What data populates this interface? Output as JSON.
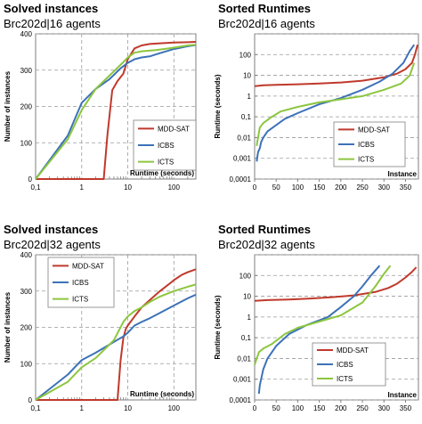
{
  "chart_data": [
    {
      "type": "line",
      "title": "Solved instances",
      "subtitle": "Brc202d|16 agents",
      "xlabel": "Runtime  (seconds)",
      "ylabel": "Number of instances",
      "xscale": "log",
      "xlim": [
        0.1,
        300
      ],
      "ylim": [
        0,
        400
      ],
      "xticks": [
        "0,1",
        "1",
        "10",
        "100"
      ],
      "yticks": [
        "0",
        "100",
        "200",
        "300",
        "400"
      ],
      "grid": true,
      "legend_position": "bottom-right",
      "series": [
        {
          "name": "MDD-SAT",
          "color": "#c0392b",
          "x": [
            0.1,
            3.0,
            3.6,
            4.6,
            6.0,
            8.0,
            10,
            14,
            20,
            30,
            50,
            100,
            200,
            300
          ],
          "y": [
            0,
            0,
            120,
            245,
            270,
            290,
            330,
            360,
            368,
            372,
            374,
            376,
            377,
            378
          ]
        },
        {
          "name": "ICBS",
          "color": "#3c72b8",
          "x": [
            0.1,
            0.5,
            1.0,
            2.0,
            4.0,
            7.0,
            10,
            14,
            20,
            30,
            40,
            60,
            100,
            200,
            300
          ],
          "y": [
            0,
            120,
            210,
            248,
            275,
            305,
            320,
            330,
            335,
            338,
            343,
            350,
            358,
            366,
            369
          ]
        },
        {
          "name": "ICTS",
          "color": "#8cc63f",
          "x": [
            0.1,
            0.5,
            1.0,
            2.0,
            4.0,
            8.0,
            10,
            14,
            20,
            40,
            60,
            100,
            200,
            300
          ],
          "y": [
            0,
            110,
            190,
            248,
            285,
            322,
            335,
            348,
            352,
            355,
            358,
            362,
            368,
            370
          ]
        }
      ]
    },
    {
      "type": "line",
      "title": "Sorted Runtimes",
      "subtitle": "Brc202d|16 agents",
      "xlabel": "Instance",
      "ylabel": "Runtime  (seconds)",
      "yscale": "log",
      "xlim": [
        0,
        380
      ],
      "ylim": [
        0.0001,
        1000
      ],
      "xticks": [
        "0",
        "50",
        "100",
        "150",
        "200",
        "250",
        "300",
        "350"
      ],
      "yticks": [
        "0,0001",
        "0,001",
        "0,01",
        "0,1",
        "1",
        "10",
        "100"
      ],
      "grid": true,
      "legend_position": "bottom-right",
      "series": [
        {
          "name": "MDD-SAT",
          "color": "#c0392b",
          "x": [
            0,
            20,
            50,
            100,
            150,
            200,
            250,
            300,
            330,
            350,
            365,
            372,
            378
          ],
          "y": [
            3.0,
            3.3,
            3.5,
            3.7,
            4.0,
            4.5,
            5.5,
            8.0,
            12,
            20,
            40,
            100,
            300
          ]
        },
        {
          "name": "ICBS",
          "color": "#3c72b8",
          "x": [
            5,
            6,
            8,
            12,
            15,
            20,
            30,
            50,
            70,
            100,
            150,
            200,
            250,
            290,
            320,
            345,
            360,
            370
          ],
          "y": [
            0.0007,
            0.0011,
            0.002,
            0.003,
            0.006,
            0.01,
            0.02,
            0.04,
            0.08,
            0.15,
            0.4,
            0.8,
            2.0,
            5.0,
            12,
            40,
            150,
            300
          ]
        },
        {
          "name": "ICTS",
          "color": "#8cc63f",
          "x": [
            5,
            6,
            8,
            12,
            20,
            40,
            60,
            100,
            150,
            200,
            250,
            300,
            340,
            360,
            370
          ],
          "y": [
            0.004,
            0.006,
            0.01,
            0.03,
            0.05,
            0.1,
            0.18,
            0.3,
            0.5,
            0.7,
            1.0,
            2.0,
            4.0,
            10,
            40
          ]
        }
      ]
    },
    {
      "type": "line",
      "title": "Solved instances",
      "subtitle": "Brc202d|32 agents",
      "xlabel": "Runtime  (seconds)",
      "ylabel": "Number of instances",
      "xscale": "log",
      "xlim": [
        0.1,
        300
      ],
      "ylim": [
        0,
        400
      ],
      "xticks": [
        "0,1",
        "1",
        "10",
        "100"
      ],
      "yticks": [
        "0",
        "100",
        "200",
        "300",
        "400"
      ],
      "grid": true,
      "legend_position": "top-right",
      "series": [
        {
          "name": "MDD-SAT",
          "color": "#c0392b",
          "x": [
            0.1,
            6.0,
            7.0,
            8.0,
            9.0,
            10,
            14,
            20,
            30,
            50,
            80,
            100,
            150,
            200,
            300
          ],
          "y": [
            0,
            0,
            110,
            170,
            195,
            205,
            230,
            255,
            275,
            300,
            320,
            330,
            345,
            352,
            360
          ]
        },
        {
          "name": "ICBS",
          "color": "#3c72b8",
          "x": [
            0.1,
            0.5,
            1.0,
            2.0,
            5.0,
            8.0,
            10,
            14,
            20,
            30,
            50,
            100,
            200,
            300
          ],
          "y": [
            0,
            70,
            110,
            130,
            160,
            175,
            185,
            205,
            215,
            225,
            240,
            260,
            280,
            290
          ]
        },
        {
          "name": "ICTS",
          "color": "#8cc63f",
          "x": [
            0.1,
            0.5,
            1.0,
            2.0,
            5.0,
            8.0,
            10,
            14,
            20,
            30,
            50,
            100,
            200,
            300
          ],
          "y": [
            0,
            50,
            90,
            115,
            165,
            215,
            230,
            245,
            255,
            270,
            285,
            300,
            312,
            318
          ]
        }
      ]
    },
    {
      "type": "line",
      "title": "Sorted Runtimes",
      "subtitle": "Brc202d|32 agents",
      "xlabel": "Instance",
      "ylabel": "Runtime  (seconds)",
      "yscale": "log",
      "xlim": [
        0,
        380
      ],
      "ylim": [
        0.0001,
        1000
      ],
      "xticks": [
        "0",
        "50",
        "100",
        "150",
        "200",
        "250",
        "300",
        "350"
      ],
      "yticks": [
        "0,0001",
        "0,001",
        "0,01",
        "0,1",
        "1",
        "10",
        "100"
      ],
      "grid": true,
      "legend_position": "bottom-right",
      "series": [
        {
          "name": "MDD-SAT",
          "color": "#c0392b",
          "x": [
            0,
            30,
            80,
            130,
            180,
            230,
            280,
            310,
            330,
            350,
            365,
            375
          ],
          "y": [
            6.0,
            6.5,
            7.0,
            7.8,
            9.0,
            11,
            16,
            25,
            40,
            80,
            150,
            250
          ]
        },
        {
          "name": "ICBS",
          "color": "#3c72b8",
          "x": [
            10,
            12,
            15,
            20,
            30,
            50,
            80,
            120,
            170,
            200,
            230,
            250,
            270,
            290
          ],
          "y": [
            0.0002,
            0.0005,
            0.001,
            0.003,
            0.01,
            0.04,
            0.15,
            0.4,
            1.0,
            3.0,
            10,
            30,
            100,
            300
          ]
        },
        {
          "name": "ICTS",
          "color": "#8cc63f",
          "x": [
            0,
            5,
            10,
            20,
            40,
            70,
            100,
            150,
            200,
            250,
            280,
            300,
            315
          ],
          "y": [
            0.005,
            0.01,
            0.02,
            0.03,
            0.05,
            0.15,
            0.3,
            0.6,
            1.2,
            5.0,
            30,
            120,
            300
          ]
        }
      ]
    }
  ]
}
